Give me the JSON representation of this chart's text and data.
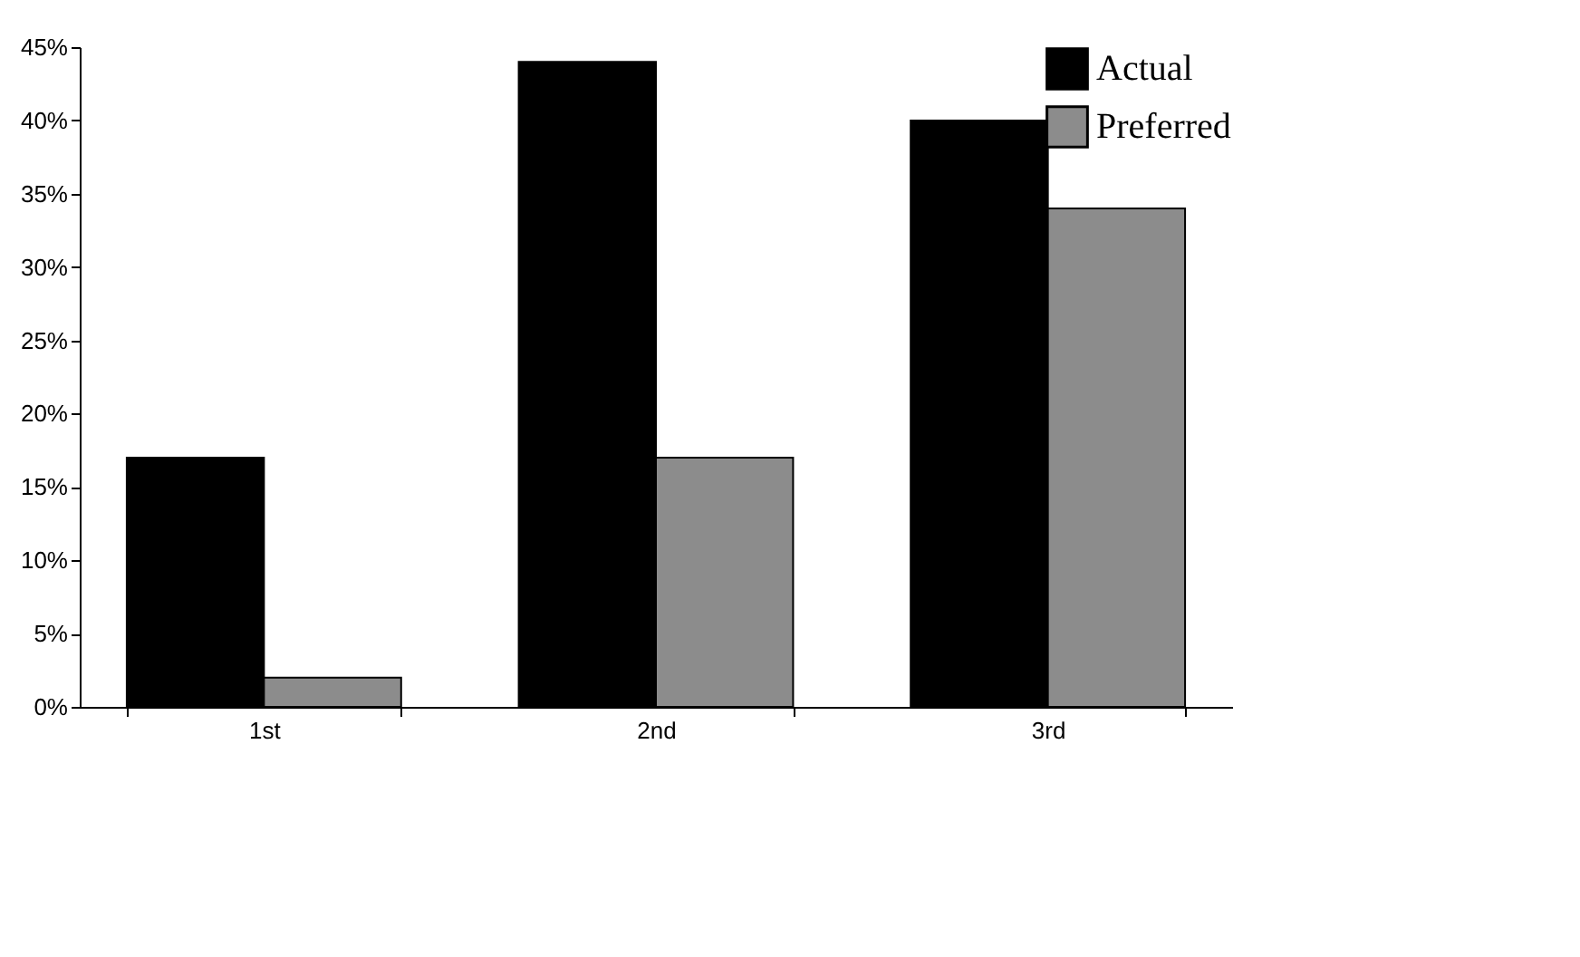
{
  "chart_data": {
    "type": "bar",
    "categories": [
      "1st",
      "2nd",
      "3rd"
    ],
    "series": [
      {
        "name": "Actual",
        "color": "#000000",
        "values": [
          17,
          44,
          40
        ]
      },
      {
        "name": "Preferred",
        "color": "#8c8c8c",
        "values": [
          2,
          17,
          34
        ]
      }
    ],
    "ylim": [
      0,
      45
    ],
    "yticks": [
      {
        "value": 0,
        "label": "0%"
      },
      {
        "value": 5,
        "label": "5%"
      },
      {
        "value": 10,
        "label": "10%"
      },
      {
        "value": 15,
        "label": "15%"
      },
      {
        "value": 20,
        "label": "20%"
      },
      {
        "value": 25,
        "label": "25%"
      },
      {
        "value": 30,
        "label": "30%"
      },
      {
        "value": 35,
        "label": "35%"
      },
      {
        "value": 40,
        "label": "40%"
      },
      {
        "value": 45,
        "label": "45%"
      }
    ],
    "grid": false,
    "legend": "top right"
  }
}
